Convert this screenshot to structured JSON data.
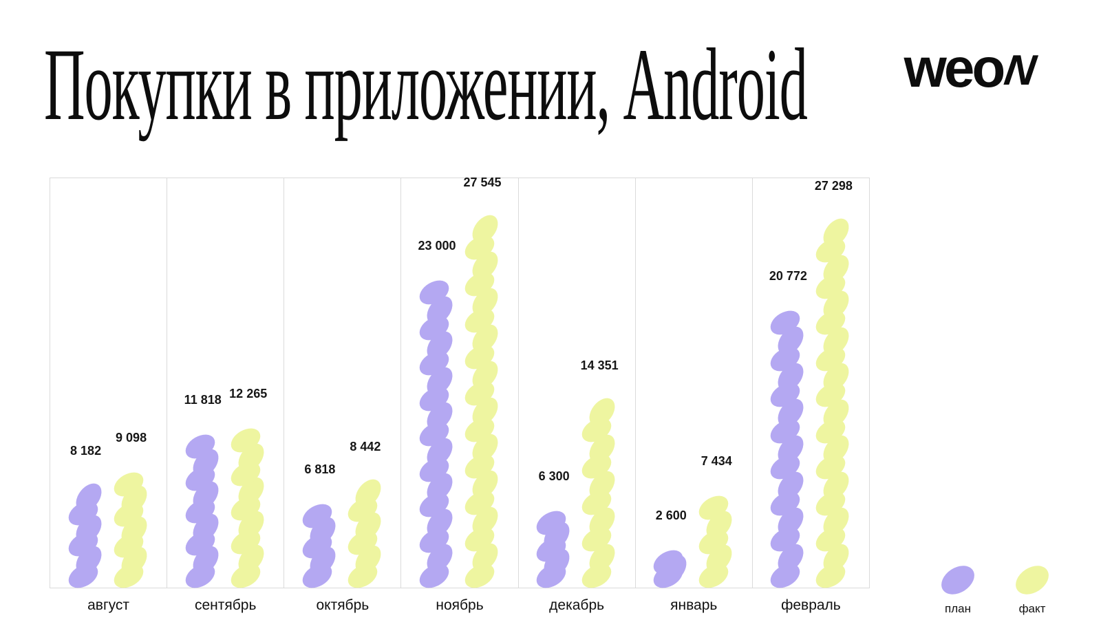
{
  "title": "Покупки в приложении, Android",
  "logo": {
    "text_main": "weo",
    "text_n": "N"
  },
  "legend": [
    {
      "label": "план",
      "color": "#b4a8f2"
    },
    {
      "label": "факт",
      "color": "#eef5a0"
    }
  ],
  "colors": {
    "plan": "#b4a8f2",
    "fact": "#eef5a0",
    "grid": "#dadada",
    "text": "#141414",
    "background": "#ffffff"
  },
  "chart_data": {
    "type": "bar",
    "title": "Покупки в приложении, Android",
    "categories": [
      "август",
      "сентябрь",
      "октябрь",
      "ноябрь",
      "декабрь",
      "январь",
      "февраль"
    ],
    "series": [
      {
        "name": "план",
        "color": "#b4a8f2",
        "values": [
          8182,
          11818,
          6818,
          23000,
          6300,
          2600,
          20772
        ],
        "labels": [
          "8 182",
          "11 818",
          "6 818",
          "23 000",
          "6 300",
          "2 600",
          "20 772"
        ]
      },
      {
        "name": "факт",
        "color": "#eef5a0",
        "values": [
          9098,
          12265,
          8442,
          27545,
          14351,
          7434,
          27298
        ],
        "labels": [
          "9 098",
          "12 265",
          "8 442",
          "27 545",
          "14 351",
          "7 434",
          "27 298"
        ]
      }
    ],
    "ylim": [
      0,
      29000
    ],
    "xlabel": "",
    "ylabel": "",
    "grid": "vertical-separators-only",
    "value_labels": "above-bars",
    "legend_position": "bottom-right",
    "bar_style": "stacked-bead-ellipses"
  }
}
